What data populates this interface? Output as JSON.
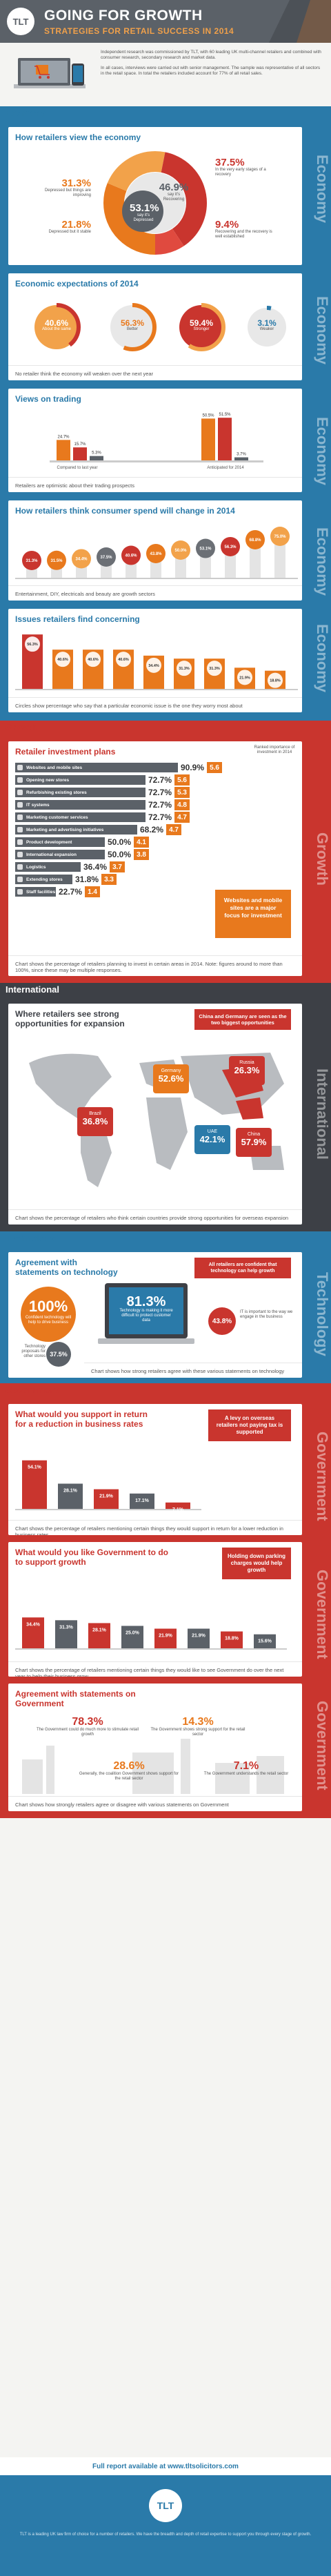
{
  "header": {
    "logo": "TLT",
    "title": "GOING FOR GROWTH",
    "subtitle": "STRATEGIES FOR RETAIL SUCCESS IN 2014"
  },
  "intro": {
    "para1": "Independent research was commissioned by TLT, with 60 leading UK multi-channel retailers and combined with consumer research, secondary research and market data.",
    "para2": "In all cases, interviews were carried out with senior management. The sample was representative of all sectors in the retail space. In total the retailers included account for 77% of all retail sales."
  },
  "sections": {
    "economy": "Economy",
    "growth": "Growth",
    "international": "International",
    "technology": "Technology",
    "government": "Government"
  },
  "side_labels": {
    "economy": "Economy",
    "growth": "Growth",
    "international": "International",
    "technology": "Technology",
    "government": "Government"
  },
  "view_economy": {
    "title": "How retailers view the economy",
    "center_value": "53.1%",
    "center_label": "say it's Depressed",
    "center2_value": "46.9%",
    "center2_label": "say it's Recovering",
    "items": [
      {
        "value": "31.3%",
        "label": "Depressed but things are improving"
      },
      {
        "value": "21.8%",
        "label": "Depressed but it stable"
      },
      {
        "value": "37.5%",
        "label": "In the very early stages of a recovery"
      },
      {
        "value": "9.4%",
        "label": "Recovering and the recovery is well established"
      }
    ],
    "colors": [
      "#e8791d",
      "#f2a24a",
      "#c9352e",
      "#e04a3f"
    ]
  },
  "expectations": {
    "title": "Economic expectations of 2014",
    "items": [
      {
        "value": "40.6%",
        "label": "About the same"
      },
      {
        "value": "56.3%",
        "label": "Better"
      },
      {
        "value": "59.4%",
        "label": "Stronger"
      },
      {
        "value": "3.1%",
        "label": "Weaker"
      }
    ],
    "caption": "No retailer think the economy will weaken over the next year"
  },
  "trading": {
    "title": "Views on trading",
    "left_label": "Compared to last year",
    "right_label": "Anticipated for 2014",
    "left_values": [
      "24.7%",
      "15.7%",
      "5.3%"
    ],
    "right_values": [
      "50.5%",
      "51.5%",
      "3.7%"
    ],
    "caption": "Retailers are optimistic about their trading prospects"
  },
  "consumer_spend": {
    "title": "How retailers think consumer spend will change in 2014",
    "values": [
      "31.3%",
      "31.5%",
      "34.4%",
      "37.5%",
      "40.6%",
      "43.8%",
      "50.0%",
      "53.1%",
      "56.3%",
      "68.8%",
      "75.0%"
    ],
    "caption": "Entertainment, DIY, electricals and beauty are growth sectors"
  },
  "issues": {
    "title": "Issues retailers find concerning",
    "values": [
      "56.3%",
      "40.6%",
      "40.6%",
      "40.6%",
      "34.4%",
      "31.3%",
      "31.3%",
      "21.9%",
      "18.8%"
    ],
    "caption": "Circles show percentage who say that a particular economic issue is the one they worry most about"
  },
  "investment": {
    "title": "Retailer investment plans",
    "legend": "Ranked importance of investment in 2014",
    "rows": [
      {
        "label": "Websites and mobile sites",
        "value": "90.9%",
        "score": "5.6",
        "frac": 0.909
      },
      {
        "label": "Opening new stores",
        "value": "72.7%",
        "score": "5.6",
        "frac": 0.727
      },
      {
        "label": "Refurbishing existing stores",
        "value": "72.7%",
        "score": "5.3",
        "frac": 0.727
      },
      {
        "label": "IT systems",
        "value": "72.7%",
        "score": "4.8",
        "frac": 0.727
      },
      {
        "label": "Marketing customer services",
        "value": "72.7%",
        "score": "4.7",
        "frac": 0.727
      },
      {
        "label": "Marketing and advertising initiatives",
        "value": "68.2%",
        "score": "4.7",
        "frac": 0.682
      },
      {
        "label": "Product development",
        "value": "50.0%",
        "score": "4.1",
        "frac": 0.5
      },
      {
        "label": "International expansion",
        "value": "50.0%",
        "score": "3.8",
        "frac": 0.5
      },
      {
        "label": "Logistics",
        "value": "36.4%",
        "score": "3.7",
        "frac": 0.364
      },
      {
        "label": "Extending stores",
        "value": "31.8%",
        "score": "3.3",
        "frac": 0.318
      },
      {
        "label": "Staff facilities",
        "value": "22.7%",
        "score": "1.4",
        "frac": 0.227
      }
    ],
    "callout": "Websites and mobile sites are a major focus for investment",
    "caption": "Chart shows the percentage of retailers planning to invest in certain areas in 2014. Note: figures around to more than 100%, since these may be multiple responses."
  },
  "international": {
    "title": "Where retailers see strong opportunities for expansion",
    "callout": "China and Germany are seen as the two biggest opportunities",
    "markers": [
      {
        "country": "Germany",
        "value": "52.6%"
      },
      {
        "country": "Russia",
        "value": "26.3%"
      },
      {
        "country": "Brazil",
        "value": "36.8%"
      },
      {
        "country": "UAE",
        "value": "42.1%"
      },
      {
        "country": "China",
        "value": "57.9%"
      }
    ],
    "caption": "Chart shows the percentage of retailers who think certain countries provide strong opportunities for overseas expansion"
  },
  "technology": {
    "title": "Agreement with statements on technology",
    "callout": "All retailers are confident that technology can help growth",
    "items": [
      {
        "value": "100%",
        "label": "Confident technology will help to drive business"
      },
      {
        "value": "81.3%",
        "label": "Technology is making it more difficult to protect customer data"
      },
      {
        "value": "43.8%",
        "label": "IT is important to the way we engage in the business"
      },
      {
        "value": "37.5%",
        "label": "Technology proposals for other stores"
      }
    ],
    "caption": "Chart shows how strong retailers agree with these various statements on technology"
  },
  "gov_rates": {
    "title": "What would you support in return for a reduction in business rates",
    "callout": "A levy on overseas retailers not paying tax is supported",
    "values": [
      "54.1%",
      "28.1%",
      "21.9%",
      "17.1%",
      "7.1%"
    ],
    "caption": "Chart shows the percentage of retailers mentioning certain things they would support in return for a lower reduction in business rates"
  },
  "gov_support": {
    "title": "What would you like Government to do to support growth",
    "callout": "Holding down parking charges would help growth",
    "values": [
      "34.4%",
      "31.3%",
      "28.1%",
      "25.0%",
      "21.9%",
      "21.9%",
      "18.8%",
      "15.6%"
    ],
    "caption": "Chart shows the percentage of retailers mentioning certain things they would like to see Government do over the next year to help their business grow"
  },
  "gov_statements": {
    "title": "Agreement with statements on Government",
    "items": [
      {
        "value": "78.3%",
        "label": "The Government could do much more to stimulate retail growth"
      },
      {
        "value": "14.3%",
        "label": "The Government shows strong support for the retail sector"
      },
      {
        "value": "28.6%",
        "label": "Generally, the coalition Government shows support for the retail sector"
      },
      {
        "value": "7.1%",
        "label": "The Government understands the retail sector"
      }
    ],
    "caption": "Chart shows how strongly retailers agree or disagree with various statements on Government"
  },
  "footer": {
    "report_link": "Full report available at www.tltsolicitors.com",
    "logo": "TLT",
    "note": "TLT is a leading UK law firm of choice for a number of retailers. We have the breadth and depth of retail expertise to support you through every stage of growth."
  }
}
